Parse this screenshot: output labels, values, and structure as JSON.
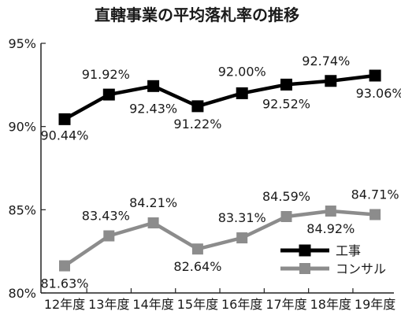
{
  "chart_data": {
    "type": "line",
    "title": "直轄事業の平均落札率の推移",
    "categories": [
      "12年度",
      "13年度",
      "14年度",
      "15年度",
      "16年度",
      "17年度",
      "18年度",
      "19年度"
    ],
    "ylim": [
      80,
      95
    ],
    "yticks": [
      "80%",
      "85%",
      "90%",
      "95%"
    ],
    "legend_position": "bottom-right",
    "grid": false,
    "series": [
      {
        "name": "工事",
        "color": "#000000",
        "values": [
          90.44,
          91.92,
          92.43,
          91.22,
          92.0,
          92.52,
          92.74,
          93.06
        ],
        "labels": [
          "90.44%",
          "91.92%",
          "92.43%",
          "91.22%",
          "92.00%",
          "92.52%",
          "92.74%",
          "93.06%"
        ]
      },
      {
        "name": "コンサル",
        "color": "#8c8c8c",
        "values": [
          81.63,
          83.43,
          84.21,
          82.64,
          83.31,
          84.59,
          84.92,
          84.71
        ],
        "labels": [
          "81.63%",
          "83.43%",
          "84.21%",
          "82.64%",
          "83.31%",
          "84.59%",
          "84.92%",
          "84.71%"
        ]
      }
    ]
  }
}
